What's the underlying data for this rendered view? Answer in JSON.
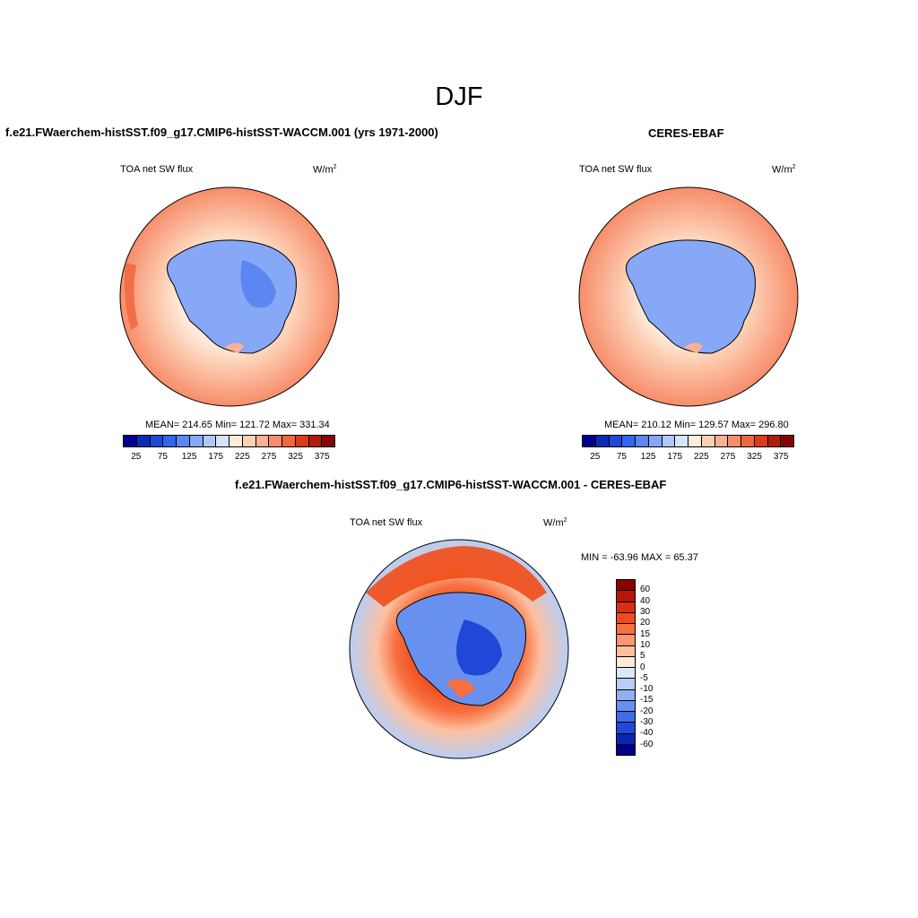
{
  "page_title": "DJF",
  "panels": [
    {
      "title": "f.e21.FWaerchem-histSST.f09_g17.CMIP6-histSST-WACCM.001 (yrs 1971-2000)",
      "left_label": "TOA net SW flux",
      "units": "W/m",
      "units_sup": "2",
      "stats": "MEAN= 214.65  Min= 121.72  Max= 331.34"
    },
    {
      "title": "CERES-EBAF",
      "left_label": "TOA net SW flux",
      "units": "W/m",
      "units_sup": "2",
      "stats": "MEAN= 210.12  Min= 129.57  Max= 296.80"
    },
    {
      "title": "f.e21.FWaerchem-histSST.f09_g17.CMIP6-histSST-WACCM.001 - CERES-EBAF",
      "left_label": "TOA net SW flux",
      "units": "W/m",
      "units_sup": "2",
      "stats": "MIN = -63.96 MAX =  65.37"
    }
  ],
  "colorbar_main": {
    "colors": [
      "#00008c",
      "#0c2bb0",
      "#1f48d8",
      "#3366ee",
      "#5c86f2",
      "#86a8f6",
      "#b0c8f8",
      "#d6e4fa",
      "#fdebdb",
      "#fcd0b5",
      "#fab092",
      "#f78d6a",
      "#f0663e",
      "#dc3a18",
      "#b01c0c",
      "#870404"
    ],
    "tick_labels": [
      "25",
      "75",
      "125",
      "175",
      "225",
      "275",
      "325",
      "375"
    ]
  },
  "colorbar_diff": {
    "colors": [
      "#8c0000",
      "#b21808",
      "#d83010",
      "#f04c1a",
      "#f87040",
      "#fa9670",
      "#fcc0a0",
      "#feeadc",
      "#dce8f8",
      "#b8cef6",
      "#90b0f2",
      "#6890ee",
      "#3f6ae8",
      "#1f48d8",
      "#0a26b4",
      "#00008c"
    ],
    "tick_labels": [
      "60",
      "40",
      "30",
      "20",
      "15",
      "10",
      "5",
      "0",
      "-5",
      "-10",
      "-15",
      "-20",
      "-30",
      "-40",
      "-60"
    ]
  }
}
